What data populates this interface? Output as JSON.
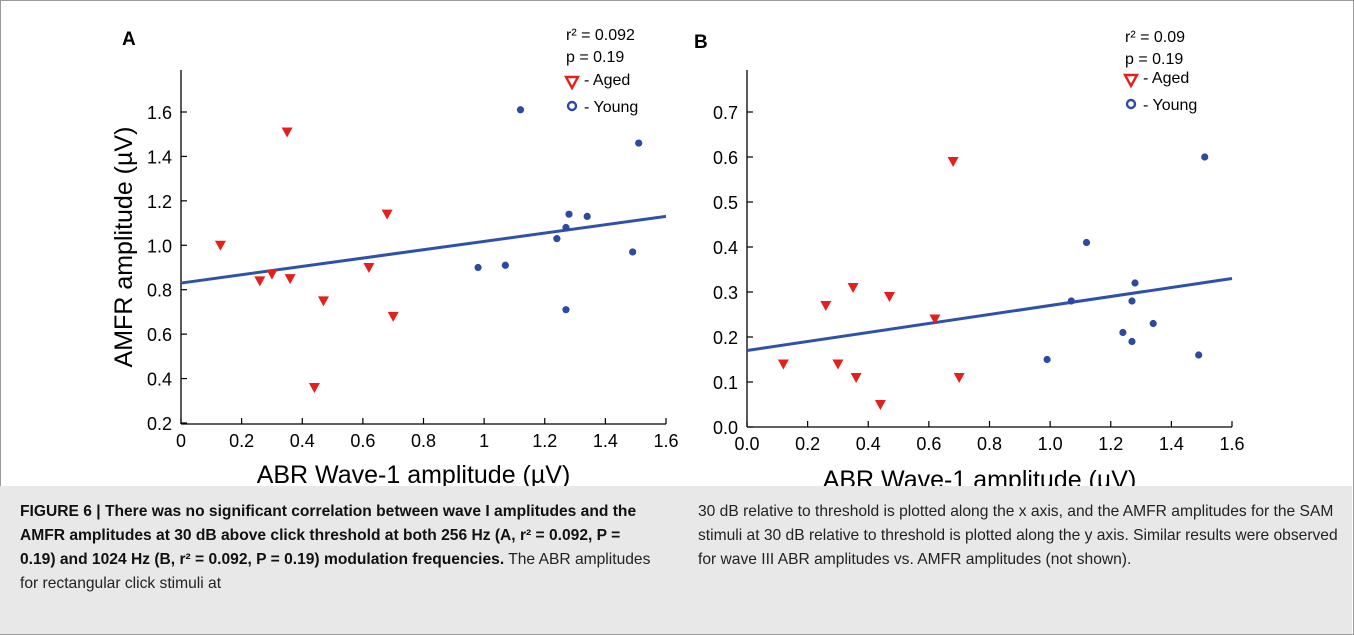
{
  "figure": {
    "panels": [
      {
        "letter": "A",
        "xlabel": "ABR Wave-1 amplitude (µV)",
        "ylabel": "AMFR amplitude (µV)",
        "stat_r2": "r² = 0.092",
        "stat_p": "p = 0.19",
        "legend_aged": "- Aged",
        "legend_young": "- Young",
        "xticks": [
          "0",
          "0.2",
          "0.4",
          "0.6",
          "0.8",
          "1",
          "1.2",
          "1.4",
          "1.6"
        ],
        "yticks": [
          "0.2",
          "0.4",
          "0.6",
          "0.8",
          "1.0",
          "1.2",
          "1.4",
          "1.6"
        ]
      },
      {
        "letter": "B",
        "xlabel": "ABR Wave-1 amplitude (µV)",
        "ylabel": "",
        "stat_r2": "r² = 0.09",
        "stat_p": "p = 0.19",
        "legend_aged": "- Aged",
        "legend_young": "- Young",
        "xticks": [
          "0.0",
          "0.2",
          "0.4",
          "0.6",
          "0.8",
          "1.0",
          "1.2",
          "1.4",
          "1.6"
        ],
        "yticks": [
          "0.0",
          "0.1",
          "0.2",
          "0.3",
          "0.4",
          "0.5",
          "0.6",
          "0.7"
        ]
      }
    ]
  },
  "caption": {
    "label": "FIGURE 6 | There was no significant correlation between wave I amplitudes and the AMFR amplitudes at 30 dB above click threshold at both 256 Hz (A, r² = 0.092, P = 0.19) and 1024 Hz (B, r² = 0.092, P = 0.19) modulation frequencies.",
    "body_left": "The ABR amplitudes for rectangular click stimuli at",
    "body_right": "30 dB relative to threshold is plotted along the x axis, and the AMFR amplitudes for the SAM stimuli at 30 dB relative to threshold is plotted along the y axis. Similar results were observed for wave III ABR amplitudes vs. AMFR amplitudes (not shown)."
  },
  "colors": {
    "aged": "#e3201b",
    "young": "#2b4aa0",
    "fit_line": "#2f52a8"
  },
  "chart_data": [
    {
      "type": "scatter",
      "title": "",
      "xlabel": "ABR Wave-1 amplitude (µV)",
      "ylabel": "AMFR amplitude (µV)",
      "xlim": [
        0,
        1.6
      ],
      "ylim": [
        0.2,
        1.8
      ],
      "grid": false,
      "legend": "top-right",
      "series": [
        {
          "name": "Aged",
          "marker": "triangle-down",
          "x": [
            0.13,
            0.26,
            0.3,
            0.35,
            0.36,
            0.44,
            0.47,
            0.62,
            0.68,
            0.7
          ],
          "y": [
            1.0,
            0.84,
            0.87,
            1.51,
            0.85,
            0.36,
            0.75,
            0.9,
            1.14,
            0.68
          ]
        },
        {
          "name": "Young",
          "marker": "circle",
          "x": [
            0.98,
            1.07,
            1.12,
            1.24,
            1.27,
            1.27,
            1.28,
            1.34,
            1.49,
            1.51
          ],
          "y": [
            0.9,
            0.91,
            1.61,
            1.03,
            1.08,
            0.71,
            1.14,
            1.13,
            0.97,
            1.46
          ]
        }
      ],
      "fit_line": {
        "x": [
          0,
          1.6
        ],
        "y": [
          0.83,
          1.13
        ]
      },
      "annotations": [
        "r² = 0.092",
        "p = 0.19"
      ]
    },
    {
      "type": "scatter",
      "title": "",
      "xlabel": "ABR Wave-1 amplitude (µV)",
      "ylabel": "",
      "xlim": [
        0,
        1.6
      ],
      "ylim": [
        0,
        0.8
      ],
      "grid": false,
      "legend": "top-right",
      "series": [
        {
          "name": "Aged",
          "marker": "triangle-down",
          "x": [
            0.12,
            0.26,
            0.3,
            0.35,
            0.36,
            0.44,
            0.47,
            0.62,
            0.68,
            0.7
          ],
          "y": [
            0.14,
            0.27,
            0.14,
            0.31,
            0.11,
            0.05,
            0.29,
            0.24,
            0.59,
            0.11
          ]
        },
        {
          "name": "Young",
          "marker": "circle",
          "x": [
            0.99,
            1.07,
            1.12,
            1.24,
            1.27,
            1.27,
            1.28,
            1.34,
            1.49,
            1.51
          ],
          "y": [
            0.15,
            0.28,
            0.41,
            0.21,
            0.28,
            0.19,
            0.32,
            0.23,
            0.16,
            0.6
          ]
        }
      ],
      "fit_line": {
        "x": [
          0,
          1.6
        ],
        "y": [
          0.17,
          0.33
        ]
      },
      "annotations": [
        "r² = 0.09",
        "p = 0.19"
      ]
    }
  ]
}
